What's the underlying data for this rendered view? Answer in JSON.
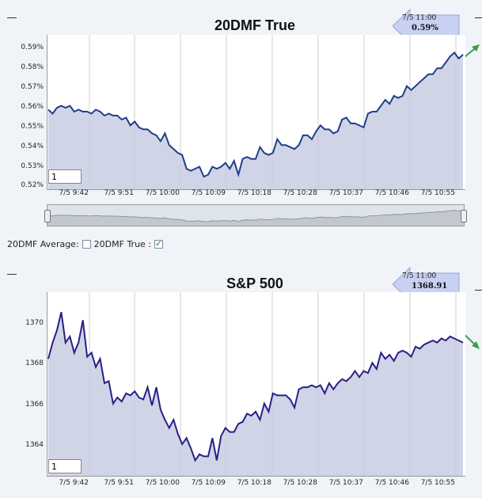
{
  "chart_data": [
    {
      "type": "area",
      "title": "20DMF True",
      "ylim": [
        0.52,
        0.59
      ],
      "yticks": [
        "0.52%",
        "0.53%",
        "0.54%",
        "0.55%",
        "0.56%",
        "0.57%",
        "0.58%",
        "0.59%"
      ],
      "xticks": [
        "7/5 9:42",
        "7/5 9:51",
        "7/5 10:00",
        "7/5 10:09",
        "7/5 10:18",
        "7/5 10:28",
        "7/5 10:37",
        "7/5 10:46",
        "7/5 10:55"
      ],
      "grid": "vertical",
      "series": [
        {
          "values": [
            0.558,
            0.556,
            0.559,
            0.56,
            0.559,
            0.56,
            0.557,
            0.558,
            0.557,
            0.557,
            0.556,
            0.558,
            0.557,
            0.555,
            0.556,
            0.555,
            0.555,
            0.553,
            0.554,
            0.55,
            0.552,
            0.549,
            0.548,
            0.548,
            0.546,
            0.545,
            0.542,
            0.546,
            0.54,
            0.538,
            0.536,
            0.535,
            0.528,
            0.527,
            0.528,
            0.529,
            0.524,
            0.525,
            0.529,
            0.528,
            0.529,
            0.531,
            0.528,
            0.532,
            0.525,
            0.533,
            0.534,
            0.533,
            0.533,
            0.539,
            0.536,
            0.535,
            0.536,
            0.543,
            0.54,
            0.54,
            0.539,
            0.538,
            0.54,
            0.545,
            0.545,
            0.543,
            0.547,
            0.55,
            0.548,
            0.548,
            0.546,
            0.547,
            0.553,
            0.554,
            0.551,
            0.551,
            0.55,
            0.549,
            0.556,
            0.557,
            0.557,
            0.56,
            0.563,
            0.561,
            0.565,
            0.564,
            0.565,
            0.57,
            0.568,
            0.57,
            0.572,
            0.574,
            0.576,
            0.576,
            0.579,
            0.579,
            0.582,
            0.585,
            0.587,
            0.584,
            0.586
          ]
        }
      ],
      "callout": {
        "time": "7/5 11:00",
        "value": "0.59%"
      },
      "zoom": "1"
    },
    {
      "type": "area",
      "title": "S&P 500",
      "ylim": [
        1362.5,
        1371.0
      ],
      "yticks": [
        "1364",
        "1366",
        "1368",
        "1370"
      ],
      "xticks": [
        "7/5 9:42",
        "7/5 9:51",
        "7/5 10:00",
        "7/5 10:09",
        "7/5 10:18",
        "7/5 10:28",
        "7/5 10:37",
        "7/5 10:46",
        "7/5 10:55"
      ],
      "grid": "vertical",
      "series": [
        {
          "values": [
            1368.2,
            1369.0,
            1369.6,
            1370.5,
            1369.0,
            1369.3,
            1368.5,
            1369.0,
            1370.1,
            1368.3,
            1368.5,
            1367.8,
            1368.2,
            1367.0,
            1367.1,
            1366.0,
            1366.3,
            1366.1,
            1366.5,
            1366.4,
            1366.6,
            1366.3,
            1366.2,
            1366.8,
            1365.9,
            1366.8,
            1365.7,
            1365.2,
            1364.8,
            1365.2,
            1364.5,
            1364.0,
            1364.3,
            1363.8,
            1363.2,
            1363.5,
            1363.4,
            1363.4,
            1364.3,
            1363.2,
            1364.4,
            1364.8,
            1364.6,
            1364.6,
            1365.0,
            1365.1,
            1365.5,
            1365.4,
            1365.6,
            1365.2,
            1366.0,
            1365.6,
            1366.5,
            1366.4,
            1366.4,
            1366.4,
            1366.2,
            1365.8,
            1366.7,
            1366.8,
            1366.8,
            1366.9,
            1366.8,
            1366.9,
            1366.5,
            1367.0,
            1366.7,
            1367.0,
            1367.2,
            1367.1,
            1367.3,
            1367.6,
            1367.3,
            1367.6,
            1367.5,
            1368.0,
            1367.7,
            1368.5,
            1368.2,
            1368.4,
            1368.1,
            1368.5,
            1368.6,
            1368.5,
            1368.3,
            1368.8,
            1368.7,
            1368.9,
            1369.0,
            1369.1,
            1369.0,
            1369.2,
            1369.1,
            1369.3,
            1369.2,
            1369.1,
            1369.0
          ]
        }
      ],
      "callout": {
        "time": "7/5 11:00",
        "value": "1368.91"
      },
      "zoom": "1"
    }
  ],
  "legend": {
    "avg_label": "20DMF Average:",
    "true_label": "20DMF True :",
    "avg_checked": false,
    "true_checked": true
  },
  "colors": {
    "line_top": "#1f3f8a",
    "line_bottom": "#2a1f86",
    "fill": "#c7cde2",
    "grid": "#cfcfcf",
    "callout_arrow": "#c9d1f2",
    "trend_arrow": "#3aa04a"
  }
}
